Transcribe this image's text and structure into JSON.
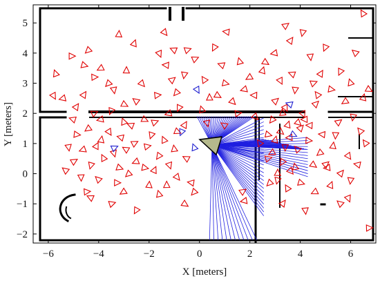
{
  "chart_data": {
    "type": "scatter",
    "title": "",
    "xlabel": "X [meters]",
    "ylabel": "Y [meters]",
    "xlim": [
      -6.6,
      7.0
    ],
    "ylim": [
      -2.3,
      5.6
    ],
    "xticks": [
      -6,
      -4,
      -2,
      0,
      2,
      4,
      6
    ],
    "yticks": [
      -2,
      -1,
      0,
      1,
      2,
      3,
      4,
      5
    ],
    "xtick_labels": [
      "−6",
      "−4",
      "−2",
      "0",
      "2",
      "4",
      "6"
    ],
    "ytick_labels": [
      "−2",
      "−1",
      "0",
      "1",
      "2",
      "3",
      "4",
      "5"
    ],
    "grid": false,
    "robot_pose": {
      "x": 0.5,
      "y": 0.95
    },
    "series": [
      {
        "color": "#e00000",
        "marker": "triangle",
        "points": [
          [
            -5.1,
            3.9
          ],
          [
            -4.4,
            4.1
          ],
          [
            -3.2,
            4.6
          ],
          [
            -1.4,
            4.7
          ],
          [
            1.1,
            4.7
          ],
          [
            3.4,
            4.9
          ],
          [
            4.1,
            4.7
          ],
          [
            6.5,
            5.3
          ],
          [
            -4.6,
            3.6
          ],
          [
            -3.9,
            3.5
          ],
          [
            -2.6,
            4.3
          ],
          [
            -1.6,
            4.0
          ],
          [
            -1.0,
            4.1
          ],
          [
            -0.5,
            4.1
          ],
          [
            0.6,
            4.2
          ],
          [
            1.6,
            3.7
          ],
          [
            2.6,
            3.7
          ],
          [
            3.0,
            4.0
          ],
          [
            3.6,
            4.4
          ],
          [
            4.4,
            3.9
          ],
          [
            6.2,
            4.0
          ],
          [
            -4.2,
            3.2
          ],
          [
            -3.6,
            3.0
          ],
          [
            -2.9,
            3.4
          ],
          [
            -2.3,
            3.0
          ],
          [
            -1.3,
            3.6
          ],
          [
            -1.1,
            3.1
          ],
          [
            -0.6,
            3.3
          ],
          [
            0.2,
            3.1
          ],
          [
            1.0,
            3.0
          ],
          [
            2.0,
            3.2
          ],
          [
            2.5,
            3.4
          ],
          [
            3.2,
            3.1
          ],
          [
            3.7,
            3.3
          ],
          [
            4.5,
            3.0
          ],
          [
            5.6,
            3.4
          ],
          [
            6.0,
            3.0
          ],
          [
            6.7,
            2.8
          ],
          [
            -5.4,
            2.5
          ],
          [
            -4.6,
            2.6
          ],
          [
            -3.4,
            2.8
          ],
          [
            -2.5,
            2.4
          ],
          [
            -1.7,
            2.6
          ],
          [
            -0.9,
            2.7
          ],
          [
            0.4,
            2.5
          ],
          [
            1.3,
            2.4
          ],
          [
            2.2,
            2.6
          ],
          [
            3.0,
            2.4
          ],
          [
            3.8,
            2.8
          ],
          [
            4.7,
            2.6
          ],
          [
            5.2,
            2.8
          ],
          [
            5.8,
            2.4
          ],
          [
            6.5,
            2.5
          ],
          [
            -5.8,
            2.6
          ],
          [
            -5.0,
            1.8
          ],
          [
            -4.2,
            2.0
          ],
          [
            -3.5,
            2.1
          ],
          [
            -3.0,
            1.7
          ],
          [
            -2.2,
            1.8
          ],
          [
            -1.2,
            2.0
          ],
          [
            -0.6,
            1.6
          ],
          [
            0.3,
            1.7
          ],
          [
            1.0,
            1.6
          ],
          [
            1.5,
            2.0
          ],
          [
            2.9,
            1.8
          ],
          [
            3.3,
            2.0
          ],
          [
            3.9,
            1.7
          ],
          [
            4.2,
            1.8
          ],
          [
            4.6,
            2.3
          ],
          [
            5.4,
            1.3
          ],
          [
            6.4,
            1.4
          ],
          [
            -4.9,
            1.3
          ],
          [
            -4.4,
            1.5
          ],
          [
            -3.9,
            1.1
          ],
          [
            -3.6,
            1.4
          ],
          [
            -3.1,
            1.2
          ],
          [
            -2.6,
            1.0
          ],
          [
            -1.9,
            1.3
          ],
          [
            -1.4,
            1.1
          ],
          [
            -0.9,
            1.4
          ],
          [
            -4.6,
            0.8
          ],
          [
            -4.1,
            0.9
          ],
          [
            -3.4,
            0.7
          ],
          [
            -2.9,
            0.8
          ],
          [
            -2.1,
            0.9
          ],
          [
            -1.6,
            0.6
          ],
          [
            -1.0,
            0.8
          ],
          [
            3.2,
            1.4
          ],
          [
            3.6,
            1.2
          ],
          [
            4.0,
            1.5
          ],
          [
            3.4,
            0.9
          ],
          [
            3.9,
            0.8
          ],
          [
            4.3,
            1.1
          ],
          [
            4.8,
            0.7
          ],
          [
            5.3,
            0.9
          ],
          [
            5.9,
            0.6
          ],
          [
            6.3,
            0.3
          ],
          [
            -5.0,
            0.4
          ],
          [
            -4.3,
            0.3
          ],
          [
            -3.8,
            0.5
          ],
          [
            -3.2,
            0.2
          ],
          [
            -2.5,
            0.4
          ],
          [
            -1.8,
            0.1
          ],
          [
            -1.2,
            0.3
          ],
          [
            -0.5,
            0.5
          ],
          [
            2.7,
            0.5
          ],
          [
            3.3,
            0.4
          ],
          [
            3.8,
            0.2
          ],
          [
            4.5,
            0.3
          ],
          [
            5.1,
            0.2
          ],
          [
            5.6,
            0.0
          ],
          [
            -4.7,
            -0.1
          ],
          [
            -4.0,
            -0.2
          ],
          [
            -3.3,
            -0.3
          ],
          [
            -2.8,
            0.0
          ],
          [
            -2.0,
            -0.4
          ],
          [
            -0.9,
            -0.1
          ],
          [
            -0.3,
            -0.3
          ],
          [
            1.7,
            -0.6
          ],
          [
            3.1,
            -0.2
          ],
          [
            3.5,
            -0.5
          ],
          [
            4.0,
            -0.3
          ],
          [
            4.6,
            -0.6
          ],
          [
            5.2,
            -0.4
          ],
          [
            5.9,
            -0.8
          ],
          [
            -4.3,
            -0.8
          ],
          [
            -3.5,
            -1.0
          ],
          [
            -2.5,
            -1.2
          ],
          [
            -1.6,
            -0.7
          ],
          [
            -0.6,
            -1.0
          ],
          [
            1.8,
            -0.9
          ],
          [
            3.3,
            -1.0
          ],
          [
            4.2,
            -1.2
          ],
          [
            5.6,
            -1.0
          ],
          [
            6.7,
            -1.8
          ],
          [
            2.8,
            -0.3
          ],
          [
            3.1,
            0.0
          ],
          [
            3.6,
            0.1
          ],
          [
            4.9,
            1.3
          ],
          [
            5.5,
            1.7
          ],
          [
            6.1,
            1.9
          ],
          [
            2.4,
            1.0
          ],
          [
            2.7,
            1.3
          ],
          [
            2.9,
            0.7
          ],
          [
            3.5,
            1.6
          ],
          [
            4.1,
            2.0
          ],
          [
            -2.7,
            1.6
          ],
          [
            -1.8,
            1.7
          ],
          [
            -0.8,
            2.2
          ],
          [
            0.1,
            2.1
          ],
          [
            0.7,
            2.6
          ],
          [
            -3.9,
            1.8
          ],
          [
            -4.9,
            2.2
          ],
          [
            -5.2,
            0.9
          ],
          [
            -5.3,
            0.1
          ],
          [
            -4.5,
            -0.6
          ],
          [
            -0.2,
            -0.6
          ],
          [
            -1.3,
            -0.4
          ],
          [
            2.2,
            1.9
          ],
          [
            4.4,
            1.6
          ],
          [
            5.0,
            0.3
          ],
          [
            6.0,
            -0.2
          ],
          [
            6.6,
            1.0
          ],
          [
            -2.2,
            0.2
          ],
          [
            -3.0,
            -0.6
          ],
          [
            3.0,
            1.1
          ],
          [
            3.4,
            2.2
          ],
          [
            0.9,
            3.6
          ],
          [
            -0.2,
            3.8
          ],
          [
            5.0,
            4.2
          ],
          [
            -5.7,
            3.3
          ],
          [
            -3.0,
            2.3
          ],
          [
            1.8,
            2.8
          ],
          [
            4.8,
            3.3
          ]
        ]
      },
      {
        "color": "#2020d0",
        "marker": "triangle",
        "points": [
          [
            -0.1,
            2.8
          ],
          [
            3.6,
            2.3
          ],
          [
            -3.4,
            0.85
          ],
          [
            -0.7,
            1.4
          ],
          [
            -0.2,
            0.85
          ],
          [
            3.7,
            1.3
          ]
        ]
      }
    ]
  }
}
